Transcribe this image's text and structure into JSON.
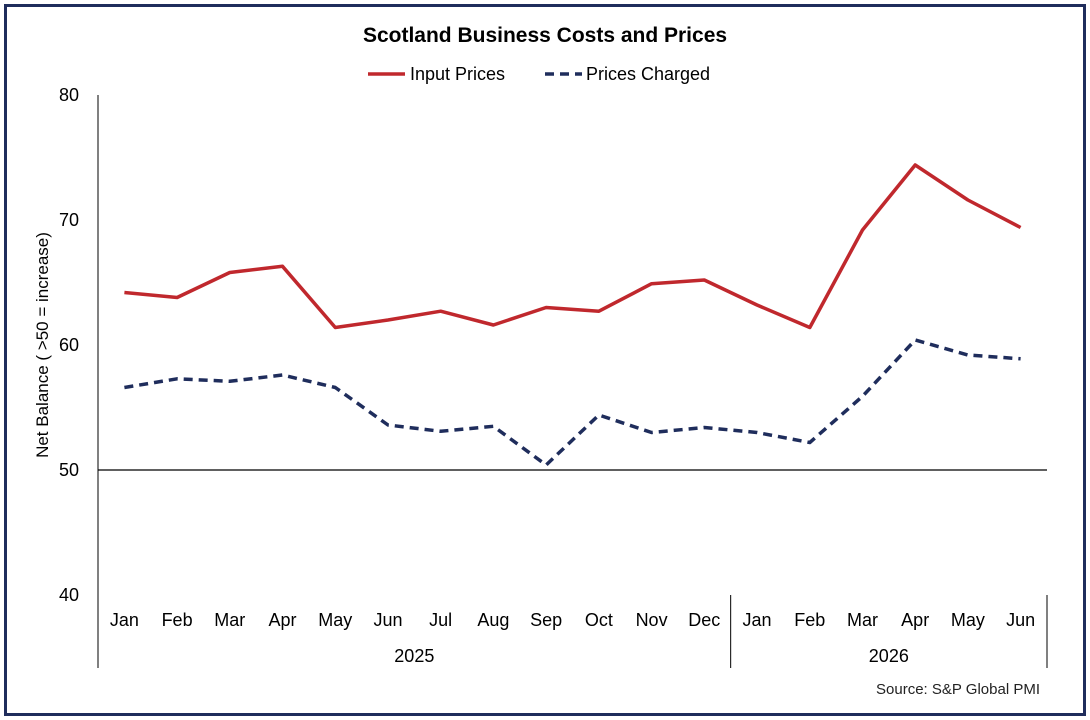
{
  "chart_data": {
    "type": "line",
    "title": "Scotland Business Costs and Prices",
    "ylabel": "Net Balance ( >50 = increase)",
    "ylim": [
      40,
      80
    ],
    "yticks": [
      40,
      50,
      60,
      70,
      80
    ],
    "reference_line": 50,
    "categories": [
      "Jan",
      "Feb",
      "Mar",
      "Apr",
      "May",
      "Jun",
      "Jul",
      "Aug",
      "Sep",
      "Oct",
      "Nov",
      "Dec",
      "Jan",
      "Feb",
      "Mar",
      "Apr",
      "May",
      "Jun"
    ],
    "year_groups": [
      {
        "label": "2025",
        "count": 12
      },
      {
        "label": "2026",
        "count": 6
      }
    ],
    "series": [
      {
        "name": "Input Prices",
        "color": "#c0282d",
        "style": "solid",
        "values": [
          64.2,
          63.8,
          65.8,
          66.3,
          61.4,
          62.0,
          62.7,
          61.6,
          63.0,
          62.7,
          64.9,
          65.2,
          63.2,
          61.4,
          69.2,
          74.4,
          71.6,
          69.4
        ]
      },
      {
        "name": "Prices Charged",
        "color": "#1f2d5c",
        "style": "dashed",
        "values": [
          56.6,
          57.3,
          57.1,
          57.6,
          56.6,
          53.6,
          53.1,
          53.5,
          50.4,
          54.4,
          53.0,
          53.4,
          53.0,
          52.2,
          55.9,
          60.4,
          59.2,
          58.9
        ]
      }
    ],
    "grid": false,
    "legend_position": "top-center"
  },
  "source": "Source: S&P Global PMI"
}
